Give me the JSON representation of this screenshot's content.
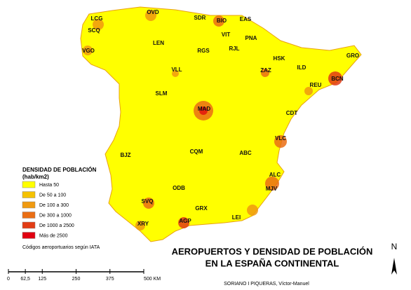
{
  "title": [
    "AEROPUERTOS Y DENSIDAD DE POBLACIÓN",
    "EN LA ESPAÑA CONTINENTAL"
  ],
  "legend": {
    "title": [
      "DENSIDAD DE POBLACIÓN",
      "(hab/km2)"
    ],
    "items": [
      {
        "label": "Hasta 50",
        "color": "#ffff00"
      },
      {
        "label": "De 50 a 100",
        "color": "#f5c200"
      },
      {
        "label": "De 100 a 300",
        "color": "#f09a10"
      },
      {
        "label": "De 300 a 1000",
        "color": "#ea6e14"
      },
      {
        "label": "De 1000 a 2500",
        "color": "#e23c14"
      },
      {
        "label": "Más de 2500",
        "color": "#e00010"
      }
    ]
  },
  "note": "Códigos aeroportuarios según IATA",
  "airports": [
    "LCG",
    "OVD",
    "SDR",
    "BIO",
    "EAS",
    "SCQ",
    "VIT",
    "PNA",
    "LEN",
    "VGO",
    "RJL",
    "RGS",
    "HSK",
    "GRO",
    "ZAZ",
    "ILD",
    "VLL",
    "BCN",
    "REU",
    "SLM",
    "MAD",
    "CDT",
    "VLC",
    "BJZ",
    "CQM",
    "ABC",
    "ALC",
    "MJV",
    "ODB",
    "SVQ",
    "GRX",
    "LEI",
    "XRY",
    "AGP"
  ],
  "scale_bar": {
    "ticks": [
      0,
      {
        "value": 62.5,
        "label": "62,5"
      },
      125,
      250,
      375,
      {
        "value": 500,
        "label": "500 KM"
      }
    ]
  },
  "north": "N",
  "author": "SORIANO I PIQUERAS, Víctor-Manuel"
}
